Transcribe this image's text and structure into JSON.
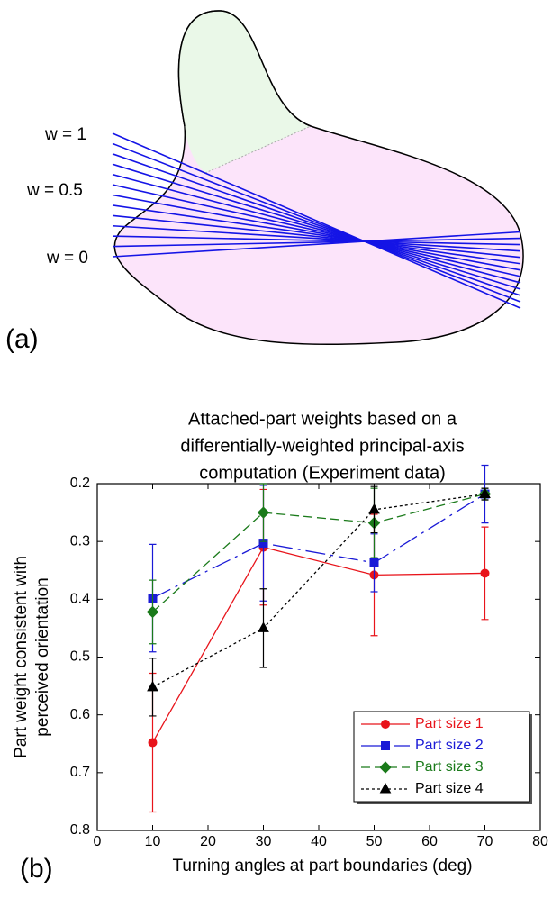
{
  "panel_a": {
    "tag": "(a)",
    "labels": [
      "w = 1",
      "w = 0.5",
      "w = 0"
    ]
  },
  "chart_data": {
    "type": "line",
    "panel_tag": "(b)",
    "title": [
      "Attached-part weights based on a",
      "differentially-weighted principal-axis",
      "computation (Experiment data)"
    ],
    "xlabel": "Turning angles at part boundaries (deg)",
    "ylabel": [
      "Part weight consistent with",
      "perceived orientation"
    ],
    "x": [
      10,
      30,
      50,
      70
    ],
    "xlim": [
      0,
      80
    ],
    "xticks": [
      0,
      10,
      20,
      30,
      40,
      50,
      60,
      70,
      80
    ],
    "ylim": [
      0.2,
      0.8
    ],
    "yticks": [
      0.2,
      0.3,
      0.4,
      0.5,
      0.6,
      0.7,
      0.8
    ],
    "y_inverted": true,
    "legend": "lower right",
    "series": [
      {
        "name": "Part size 1",
        "color": "#e8141b",
        "marker": "circle",
        "dash": "",
        "values": [
          0.648,
          0.31,
          0.358,
          0.355
        ],
        "errors": [
          0.12,
          0.1,
          0.105,
          0.08
        ]
      },
      {
        "name": "Part size 2",
        "color": "#1a1ad6",
        "marker": "square",
        "dash": "22 6 3 6",
        "values": [
          0.398,
          0.303,
          0.337,
          0.218
        ],
        "errors": [
          0.093,
          0.1,
          0.05,
          0.05
        ]
      },
      {
        "name": "Part size 3",
        "color": "#1a7a1a",
        "marker": "diamond",
        "dash": "10 5",
        "values": [
          0.422,
          0.25,
          0.268,
          0.218
        ],
        "errors": [
          0.055,
          0.05,
          0.06,
          0.01
        ]
      },
      {
        "name": "Part size 4",
        "color": "#000000",
        "marker": "triangle",
        "dash": "3 3",
        "values": [
          0.552,
          0.45,
          0.245,
          0.218
        ],
        "errors": [
          0.05,
          0.068,
          0.04,
          0.01
        ]
      }
    ]
  }
}
